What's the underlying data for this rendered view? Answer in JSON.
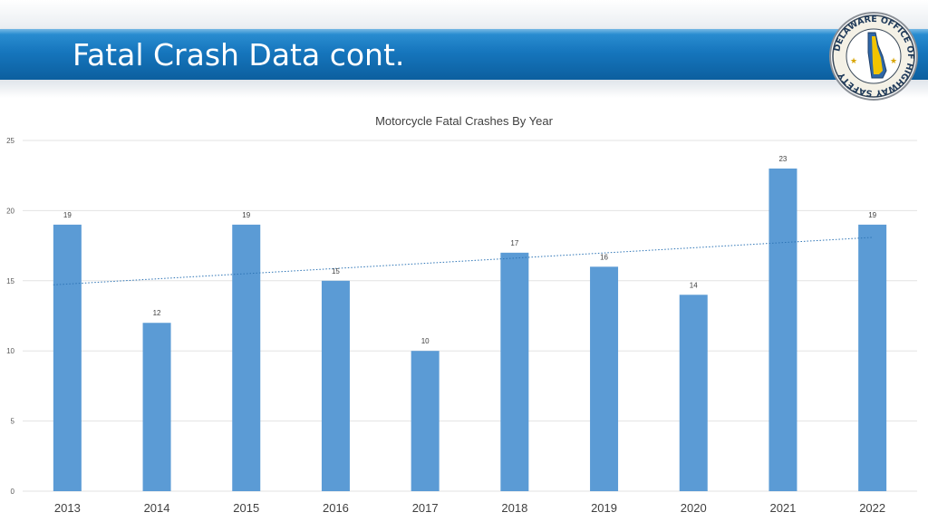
{
  "slide": {
    "title": "Fatal Crash Data cont."
  },
  "logo": {
    "text": "DELAWARE OFFICE OF HIGHWAY SAFETY"
  },
  "colors": {
    "bar": "#5b9bd5",
    "trendline": "#2e75b6",
    "gridline": "#e3e3e3",
    "banner": "#1676bd"
  },
  "chart_data": {
    "type": "bar",
    "title": "Motorcycle Fatal Crashes By Year",
    "categories": [
      "2013",
      "2014",
      "2015",
      "2016",
      "2017",
      "2018",
      "2019",
      "2020",
      "2021",
      "2022"
    ],
    "values": [
      19,
      12,
      19,
      15,
      10,
      17,
      16,
      14,
      23,
      19
    ],
    "data_labels": true,
    "ylim": [
      0,
      25
    ],
    "yticks": [
      0,
      5,
      10,
      15,
      20,
      25
    ],
    "grid": true,
    "legend": "none",
    "trendline": {
      "type": "linear",
      "style": "dotted"
    }
  }
}
